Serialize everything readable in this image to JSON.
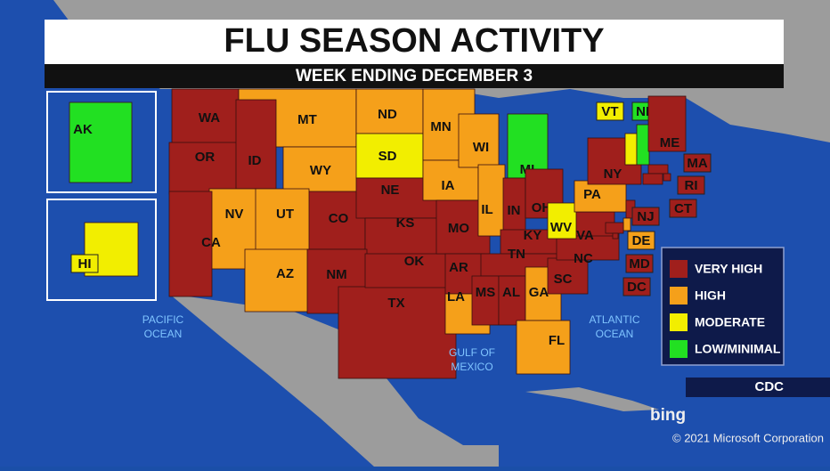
{
  "header": {
    "title": "FLU SEASON ACTIVITY",
    "subtitle": "WEEK ENDING DECEMBER 3"
  },
  "legend": [
    {
      "label": "VERY HIGH",
      "color": "#a01f1c"
    },
    {
      "label": "HIGH",
      "color": "#f5a01a"
    },
    {
      "label": "MODERATE",
      "color": "#f2ee00"
    },
    {
      "label": "LOW/MINIMAL",
      "color": "#22e022"
    }
  ],
  "states": [
    {
      "label": "WA",
      "level": "VERY HIGH"
    },
    {
      "label": "OR",
      "level": "VERY HIGH"
    },
    {
      "label": "MT",
      "level": "HIGH"
    },
    {
      "label": "ID",
      "level": "VERY HIGH"
    },
    {
      "label": "WY",
      "level": "HIGH"
    },
    {
      "label": "ND",
      "level": "HIGH"
    },
    {
      "label": "SD",
      "level": "MODERATE"
    },
    {
      "label": "CO",
      "level": "VERY HIGH"
    },
    {
      "label": "NE",
      "level": "VERY HIGH"
    },
    {
      "label": "KS",
      "level": "VERY HIGH"
    },
    {
      "label": "UT",
      "level": "HIGH"
    },
    {
      "label": "NV",
      "level": "HIGH"
    },
    {
      "label": "CA",
      "level": "VERY HIGH"
    },
    {
      "label": "AZ",
      "level": "HIGH"
    },
    {
      "label": "NM",
      "level": "VERY HIGH"
    },
    {
      "label": "TX",
      "level": "VERY HIGH"
    },
    {
      "label": "OK",
      "level": "VERY HIGH"
    },
    {
      "label": "MN",
      "level": "HIGH"
    },
    {
      "label": "IA",
      "level": "HIGH"
    },
    {
      "label": "MO",
      "level": "VERY HIGH"
    },
    {
      "label": "AR",
      "level": "VERY HIGH"
    },
    {
      "label": "LA",
      "level": "HIGH"
    },
    {
      "label": "WI",
      "level": "HIGH"
    },
    {
      "label": "IL",
      "level": "HIGH"
    },
    {
      "label": "MI",
      "level": "LOW/MINIMAL"
    },
    {
      "label": "IN",
      "level": "VERY HIGH"
    },
    {
      "label": "OH",
      "level": "VERY HIGH"
    },
    {
      "label": "KY",
      "level": "VERY HIGH"
    },
    {
      "label": "TN",
      "level": "VERY HIGH"
    },
    {
      "label": "MS",
      "level": "VERY HIGH"
    },
    {
      "label": "AL",
      "level": "VERY HIGH"
    },
    {
      "label": "GA",
      "level": "HIGH"
    },
    {
      "label": "FL",
      "level": "HIGH"
    },
    {
      "label": "SC",
      "level": "VERY HIGH"
    },
    {
      "label": "NC",
      "level": "VERY HIGH"
    },
    {
      "label": "VA",
      "level": "VERY HIGH"
    },
    {
      "label": "WV",
      "level": "MODERATE"
    },
    {
      "label": "PA",
      "level": "HIGH"
    },
    {
      "label": "NY",
      "level": "VERY HIGH"
    },
    {
      "label": "VT",
      "level": "MODERATE"
    },
    {
      "label": "NH",
      "level": "LOW/MINIMAL"
    },
    {
      "label": "ME",
      "level": "VERY HIGH"
    },
    {
      "label": "MA",
      "level": "VERY HIGH"
    },
    {
      "label": "RI",
      "level": "VERY HIGH"
    },
    {
      "label": "CT",
      "level": "VERY HIGH"
    },
    {
      "label": "NJ",
      "level": "VERY HIGH"
    },
    {
      "label": "DE",
      "level": "HIGH"
    },
    {
      "label": "MD",
      "level": "VERY HIGH"
    },
    {
      "label": "DC",
      "level": "VERY HIGH"
    },
    {
      "label": "AK",
      "level": "LOW/MINIMAL"
    },
    {
      "label": "HI",
      "level": "MODERATE"
    }
  ],
  "oceans": [
    [
      "PACIFIC",
      "OCEAN"
    ],
    [
      "GULF OF",
      "MEXICO"
    ],
    [
      "ATLANTIC",
      "OCEAN"
    ]
  ],
  "source": "CDC",
  "brand": "bing",
  "copyright": "© 2021 Microsoft Corporation"
}
